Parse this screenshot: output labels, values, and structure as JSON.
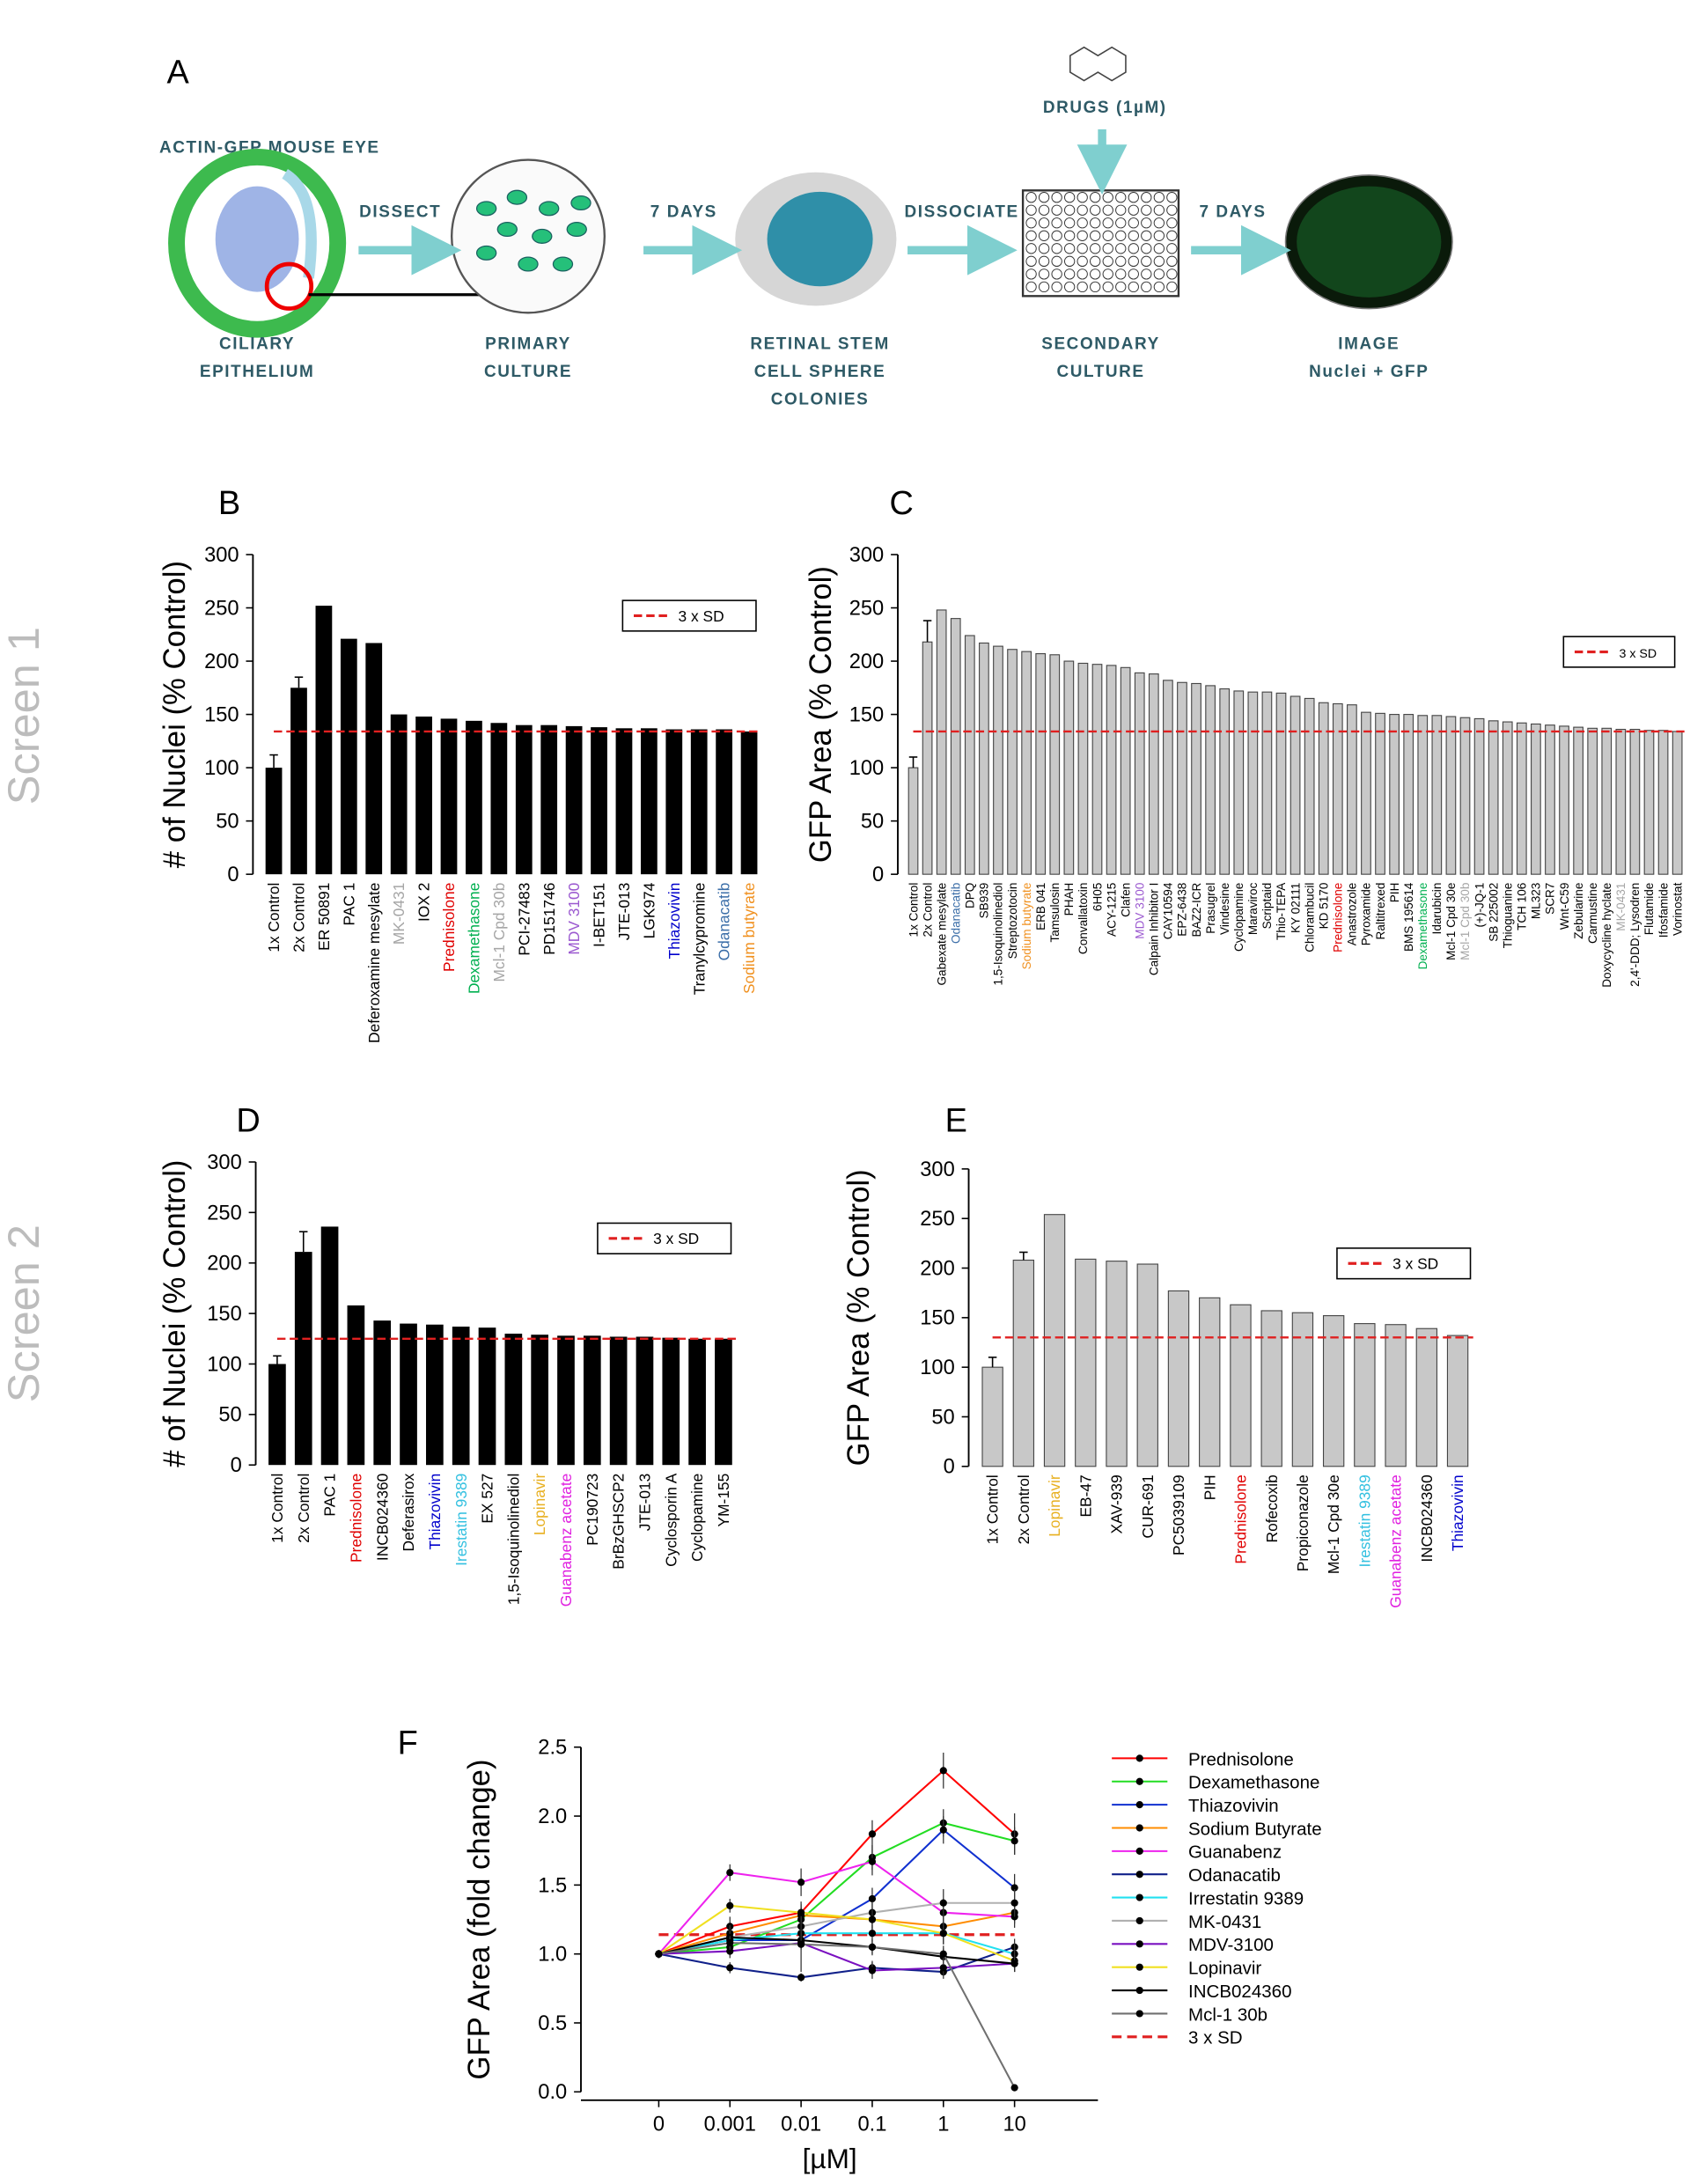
{
  "workflow": {
    "panel": "A",
    "eye_label": "ACTIN-GFP MOUSE EYE",
    "drugs": "DRUGS (1µM)",
    "steps": [
      "DISSECT",
      "7 DAYS",
      "DISSOCIATE",
      "7 DAYS"
    ],
    "stages": [
      [
        "CILIARY",
        "EPITHELIUM"
      ],
      [
        "PRIMARY",
        "CULTURE"
      ],
      [
        "RETINAL STEM",
        "CELL SPHERE",
        "COLONIES"
      ],
      [
        "SECONDARY",
        "CULTURE"
      ],
      [
        "IMAGE",
        "Nuclei + GFP"
      ]
    ]
  },
  "row_labels": [
    "Screen 1",
    "Screen 2"
  ],
  "chart_data": [
    {
      "type": "bar",
      "title": "B",
      "y_label": "# of Nuclei (% Control)",
      "color": "#000000",
      "categories": [
        "1x Control",
        "2x Control",
        "ER 50891",
        "PAC 1",
        "Deferoxamine mesylate",
        "MK-0431",
        "IOX 2",
        "Prednisolone",
        "Dexamethasone",
        "Mcl-1 Cpd 30b",
        "PCI-27483",
        "PD151746",
        "MDV 3100",
        "I-BET151",
        "JTE-013",
        "LGK974",
        "Thiazovivin",
        "Tranylcypromine",
        "Odanacatib",
        "Sodium butyrate"
      ],
      "category_colors": [
        "#000000",
        "#000000",
        "#000000",
        "#000000",
        "#000000",
        "#a6a6a6",
        "#000000",
        "#e00000",
        "#00b050",
        "#a6a6a6",
        "#000000",
        "#000000",
        "#9b59d0",
        "#000000",
        "#000000",
        "#000000",
        "#0000cc",
        "#000000",
        "#3b6ea8",
        "#f0901e"
      ],
      "values": [
        100,
        175,
        252,
        221,
        217,
        150,
        148,
        146,
        144,
        142,
        140,
        140,
        139,
        138,
        137,
        137,
        136,
        136,
        136,
        134
      ],
      "errors": [
        12,
        10,
        null,
        null,
        null,
        null,
        null,
        null,
        null,
        null,
        null,
        null,
        null,
        null,
        null,
        null,
        null,
        null,
        null,
        null
      ],
      "threshold": {
        "value": 134,
        "label": "3 x SD",
        "color": "#e02020"
      },
      "ylim": [
        0,
        300
      ],
      "yticks": [
        0,
        50,
        100,
        150,
        200,
        250,
        300
      ]
    },
    {
      "type": "bar",
      "title": "C",
      "y_label": "GFP Area (% Control)",
      "color": "#c8c8c8",
      "categories": [
        "1x Control",
        "2x Control",
        "Gabexate mesylate",
        "Odanacatib",
        "DPQ",
        "SB939",
        "1,5-Isoquinolinediol",
        "Streptozotocin",
        "Sodium butyrate",
        "ERB 041",
        "Tamsulosin",
        "PHAH",
        "Convallatoxin",
        "6H05",
        "ACY-1215",
        "Clafen",
        "MDV 3100",
        "Calpain Inhibitor I",
        "CAY10594",
        "EPZ-6438",
        "BAZ2-ICR",
        "Prasugrel",
        "Vindesine",
        "Cyclopamine",
        "Maraviroc",
        "Scriptaid",
        "Thio-TEPA",
        "KY 02111",
        "Chlorambucil",
        "KD 5170",
        "Prednisolone",
        "Anastrozole",
        "Pyroxamide",
        "Raltitrexed",
        "PIH",
        "BMS 195614",
        "Dexamethasone",
        "Idarubicin",
        "Mcl-1 Cpd 30e",
        "Mcl-1 Cpd 30b",
        "(+)-JQ-1",
        "SB 225002",
        "Thioguanine",
        "TCH 106",
        "ML323",
        "SCR7",
        "Wnt-C59",
        "Zebularine",
        "Carmustine",
        "Doxycycline hyclate",
        "MK-0431",
        "2,4'-DDD; Lysodren",
        "Flutamide",
        "Ifosfamide",
        "Vorinostat"
      ],
      "category_colors": [
        "#000000",
        "#000000",
        "#000000",
        "#3b6ea8",
        "#000000",
        "#000000",
        "#000000",
        "#000000",
        "#f0901e",
        "#000000",
        "#000000",
        "#000000",
        "#000000",
        "#000000",
        "#000000",
        "#000000",
        "#9b59d0",
        "#000000",
        "#000000",
        "#000000",
        "#000000",
        "#000000",
        "#000000",
        "#000000",
        "#000000",
        "#000000",
        "#000000",
        "#000000",
        "#000000",
        "#000000",
        "#e00000",
        "#000000",
        "#000000",
        "#000000",
        "#000000",
        "#000000",
        "#00b050",
        "#000000",
        "#000000",
        "#a6a6a6",
        "#000000",
        "#000000",
        "#000000",
        "#000000",
        "#000000",
        "#000000",
        "#000000",
        "#000000",
        "#000000",
        "#000000",
        "#a6a6a6",
        "#000000",
        "#000000",
        "#000000",
        "#000000"
      ],
      "values": [
        100,
        218,
        248,
        240,
        224,
        217,
        214,
        211,
        209,
        207,
        206,
        200,
        198,
        197,
        196,
        194,
        189,
        188,
        182,
        180,
        179,
        177,
        174,
        172,
        171,
        171,
        170,
        167,
        165,
        161,
        160,
        159,
        152,
        151,
        150,
        150,
        149,
        149,
        148,
        147,
        146,
        144,
        143,
        142,
        141,
        140,
        139,
        138,
        137,
        137,
        136,
        136,
        135,
        135,
        134
      ],
      "errors": [
        10,
        20,
        null,
        null,
        null,
        null,
        null,
        null,
        null,
        null,
        null,
        null,
        null,
        null,
        null,
        null,
        null,
        null,
        null,
        null,
        null,
        null,
        null,
        null,
        null,
        null,
        null,
        null,
        null,
        null,
        null,
        null,
        null,
        null,
        null,
        null,
        null,
        null,
        null,
        null,
        null,
        null,
        null,
        null,
        null,
        null,
        null,
        null,
        null,
        null,
        null,
        null,
        null,
        null,
        null
      ],
      "threshold": {
        "value": 134,
        "label": "3 x SD",
        "color": "#e02020"
      },
      "ylim": [
        0,
        300
      ],
      "yticks": [
        0,
        50,
        100,
        150,
        200,
        250,
        300
      ]
    },
    {
      "type": "bar",
      "title": "D",
      "y_label": "# of Nuclei (% Control)",
      "color": "#000000",
      "categories": [
        "1x Control",
        "2x Control",
        "PAC 1",
        "Prednisolone",
        "INCB024360",
        "Deferasirox",
        "Thiazovivin",
        "Irestatin 9389",
        "EX 527",
        "1,5-Isoquinolinediol",
        "Lopinavir",
        "Guanabenz acetate",
        "PC190723",
        "BrBzGHSCP2",
        "JTE-013",
        "Cyclosporin A",
        "Cyclopamine",
        "YM-155"
      ],
      "category_colors": [
        "#000000",
        "#000000",
        "#000000",
        "#e00000",
        "#000000",
        "#000000",
        "#0000cc",
        "#33c0e0",
        "#000000",
        "#000000",
        "#e8b020",
        "#e020e0",
        "#000000",
        "#000000",
        "#000000",
        "#000000",
        "#000000",
        "#000000"
      ],
      "values": [
        100,
        211,
        236,
        158,
        143,
        140,
        139,
        137,
        136,
        130,
        129,
        128,
        128,
        127,
        127,
        126,
        125,
        125
      ],
      "errors": [
        8,
        20,
        null,
        null,
        null,
        null,
        null,
        null,
        null,
        null,
        null,
        null,
        null,
        null,
        null,
        null,
        null,
        null
      ],
      "threshold": {
        "value": 125,
        "label": "3 x SD",
        "color": "#e02020"
      },
      "ylim": [
        0,
        300
      ],
      "yticks": [
        0,
        50,
        100,
        150,
        200,
        250,
        300
      ]
    },
    {
      "type": "bar",
      "title": "E",
      "y_label": "GFP Area (% Control)",
      "color": "#c8c8c8",
      "categories": [
        "1x Control",
        "2x Control",
        "Lopinavir",
        "EB-47",
        "XAV-939",
        "CUR-691",
        "PC5039109",
        "PIH",
        "Prednisolone",
        "Rofecoxib",
        "Propiconazole",
        "Mcl-1 Cpd 30e",
        "Irestatin 9389",
        "Guanabenz acetate",
        "INCB024360",
        "Thiazovivin"
      ],
      "category_colors": [
        "#000000",
        "#000000",
        "#e8b020",
        "#000000",
        "#000000",
        "#000000",
        "#000000",
        "#000000",
        "#e00000",
        "#000000",
        "#000000",
        "#000000",
        "#33c0e0",
        "#e020e0",
        "#000000",
        "#0000cc"
      ],
      "values": [
        100,
        208,
        254,
        209,
        207,
        204,
        177,
        170,
        163,
        157,
        155,
        152,
        144,
        143,
        139,
        132
      ],
      "errors": [
        10,
        8,
        null,
        null,
        null,
        null,
        null,
        null,
        null,
        null,
        null,
        null,
        null,
        null,
        null,
        null
      ],
      "threshold": {
        "value": 130,
        "label": "3 x SD",
        "color": "#e02020"
      },
      "ylim": [
        0,
        300
      ],
      "yticks": [
        0,
        50,
        100,
        150,
        200,
        250,
        300
      ]
    },
    {
      "type": "line",
      "title": "F",
      "y_label": "GFP Area (fold change)",
      "x_label": "[µM]",
      "categories": [
        "0",
        "0.001",
        "0.01",
        "0.1",
        "1",
        "10"
      ],
      "series": [
        {
          "name": "Prednisolone",
          "color": "#ff0000",
          "values": [
            1.0,
            1.2,
            1.3,
            1.87,
            2.33,
            1.87
          ],
          "errors": [
            0.03,
            0.07,
            0.08,
            0.1,
            0.13,
            0.15
          ]
        },
        {
          "name": "Dexamethasone",
          "color": "#22dd22",
          "values": [
            1.0,
            1.05,
            1.25,
            1.7,
            1.95,
            1.82
          ],
          "errors": [
            0.03,
            0.06,
            0.08,
            0.09,
            0.1,
            0.1
          ]
        },
        {
          "name": "Thiazovivin",
          "color": "#1030d0",
          "values": [
            1.0,
            1.1,
            1.1,
            1.4,
            1.9,
            1.48
          ],
          "errors": [
            0.03,
            0.05,
            0.06,
            0.08,
            0.1,
            0.1
          ]
        },
        {
          "name": "Sodium Butyrate",
          "color": "#ff8c00",
          "values": [
            1.0,
            1.15,
            1.28,
            1.25,
            1.2,
            1.3
          ],
          "errors": [
            0.03,
            0.06,
            0.06,
            0.07,
            0.08,
            0.08
          ]
        },
        {
          "name": "Guanabenz",
          "color": "#ee22ee",
          "values": [
            1.0,
            1.59,
            1.52,
            1.67,
            1.3,
            1.27
          ],
          "errors": [
            0.03,
            0.06,
            0.1,
            0.1,
            0.1,
            0.08
          ]
        },
        {
          "name": "Odanacatib",
          "color": "#10208a",
          "values": [
            1.0,
            0.9,
            0.83,
            0.9,
            0.87,
            1.05
          ],
          "errors": [
            0.03,
            0.04,
            0.03,
            0.05,
            0.05,
            0.06
          ]
        },
        {
          "name": "Irrestatin 9389",
          "color": "#22e0f0",
          "values": [
            1.0,
            1.1,
            1.15,
            1.15,
            1.15,
            1.0
          ],
          "errors": [
            0.03,
            0.05,
            0.06,
            0.06,
            0.08,
            0.08
          ]
        },
        {
          "name": "MK-0431",
          "color": "#b0b0b0",
          "values": [
            1.0,
            1.12,
            1.2,
            1.3,
            1.37,
            1.37
          ],
          "errors": [
            0.03,
            0.05,
            0.07,
            0.08,
            0.1,
            0.1
          ]
        },
        {
          "name": "MDV-3100",
          "color": "#7a10c0",
          "values": [
            1.0,
            1.02,
            1.08,
            0.88,
            0.9,
            0.93
          ],
          "errors": [
            0.03,
            0.05,
            0.05,
            0.06,
            0.06,
            0.06
          ]
        },
        {
          "name": "Lopinavir",
          "color": "#f0e020",
          "values": [
            1.0,
            1.35,
            1.3,
            1.25,
            1.15,
            0.95
          ],
          "errors": [
            0.03,
            0.05,
            0.06,
            0.07,
            0.08,
            0.08
          ]
        },
        {
          "name": "INCB024360",
          "color": "#000000",
          "values": [
            1.0,
            1.12,
            1.1,
            1.05,
            0.98,
            0.93
          ],
          "errors": [
            0.03,
            0.04,
            0.05,
            0.05,
            0.06,
            0.06
          ]
        },
        {
          "name": "Mcl-1 30b",
          "color": "#707070",
          "values": [
            1.0,
            1.08,
            1.07,
            1.05,
            1.0,
            0.03
          ],
          "errors": [
            0.03,
            0.05,
            0.2,
            0.06,
            0.06,
            0.02
          ]
        }
      ],
      "threshold": {
        "value": 1.14,
        "label": "3 x SD",
        "color": "#e02020"
      },
      "ylim": [
        0,
        2.5
      ],
      "yticks": [
        {
          "value": 0,
          "label": "0.0"
        },
        0.5,
        {
          "value": 1,
          "label": "1.0"
        },
        1.5,
        {
          "value": 2,
          "label": "2.0"
        },
        2.5
      ]
    }
  ]
}
